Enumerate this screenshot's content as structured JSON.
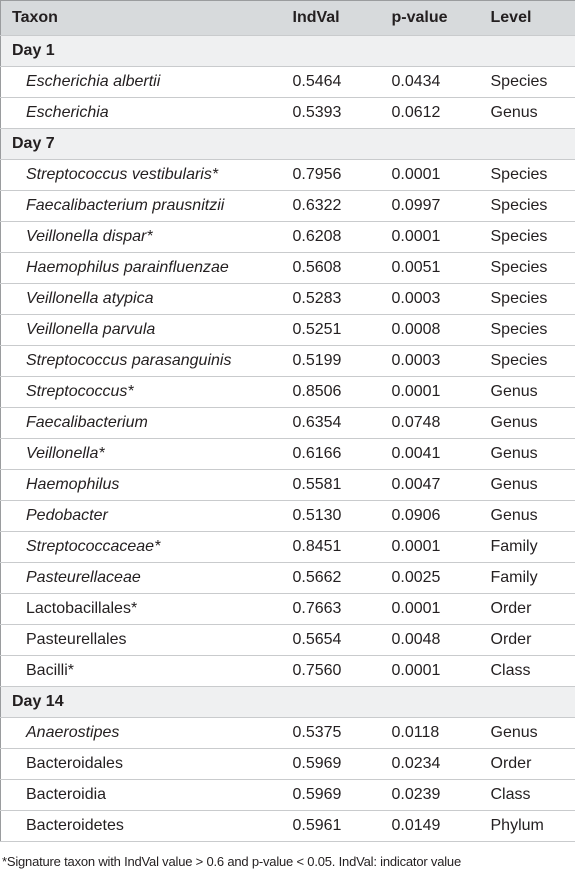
{
  "table": {
    "columns": [
      "Taxon",
      "IndVal",
      "p-value",
      "Level"
    ],
    "groups": [
      {
        "label": "Day 1",
        "rows": [
          {
            "taxon": "Escherichia albertii",
            "italic": true,
            "indval": "0.5464",
            "p_value": "0.0434",
            "level": "Species"
          },
          {
            "taxon": "Escherichia",
            "italic": true,
            "indval": "0.5393",
            "p_value": "0.0612",
            "level": "Genus"
          }
        ]
      },
      {
        "label": "Day 7",
        "rows": [
          {
            "taxon": "Streptococcus vestibularis*",
            "italic": true,
            "indval": "0.7956",
            "p_value": "0.0001",
            "level": "Species"
          },
          {
            "taxon": "Faecalibacterium prausnitzii",
            "italic": true,
            "indval": "0.6322",
            "p_value": "0.0997",
            "level": "Species"
          },
          {
            "taxon": "Veillonella dispar*",
            "italic": true,
            "indval": "0.6208",
            "p_value": "0.0001",
            "level": "Species"
          },
          {
            "taxon": "Haemophilus parainfluenzae",
            "italic": true,
            "indval": "0.5608",
            "p_value": "0.0051",
            "level": "Species"
          },
          {
            "taxon": "Veillonella atypica",
            "italic": true,
            "indval": "0.5283",
            "p_value": "0.0003",
            "level": "Species"
          },
          {
            "taxon": "Veillonella parvula",
            "italic": true,
            "indval": "0.5251",
            "p_value": "0.0008",
            "level": "Species"
          },
          {
            "taxon": "Streptococcus parasanguinis",
            "italic": true,
            "indval": "0.5199",
            "p_value": "0.0003",
            "level": "Species"
          },
          {
            "taxon": "Streptococcus*",
            "italic": true,
            "indval": "0.8506",
            "p_value": "0.0001",
            "level": "Genus"
          },
          {
            "taxon": "Faecalibacterium",
            "italic": true,
            "indval": "0.6354",
            "p_value": "0.0748",
            "level": "Genus"
          },
          {
            "taxon": "Veillonella*",
            "italic": true,
            "indval": "0.6166",
            "p_value": "0.0041",
            "level": "Genus"
          },
          {
            "taxon": "Haemophilus",
            "italic": true,
            "indval": "0.5581",
            "p_value": "0.0047",
            "level": "Genus"
          },
          {
            "taxon": "Pedobacter",
            "italic": true,
            "indval": "0.5130",
            "p_value": "0.0906",
            "level": "Genus"
          },
          {
            "taxon": "Streptococcaceae*",
            "italic": true,
            "indval": "0.8451",
            "p_value": "0.0001",
            "level": "Family"
          },
          {
            "taxon": "Pasteurellaceae",
            "italic": true,
            "indval": "0.5662",
            "p_value": "0.0025",
            "level": "Family"
          },
          {
            "taxon": "Lactobacillales*",
            "italic": false,
            "indval": "0.7663",
            "p_value": "0.0001",
            "level": "Order"
          },
          {
            "taxon": "Pasteurellales",
            "italic": false,
            "indval": "0.5654",
            "p_value": "0.0048",
            "level": "Order"
          },
          {
            "taxon": "Bacilli*",
            "italic": false,
            "indval": "0.7560",
            "p_value": "0.0001",
            "level": "Class"
          }
        ]
      },
      {
        "label": "Day 14",
        "rows": [
          {
            "taxon": "Anaerostipes",
            "italic": true,
            "indval": "0.5375",
            "p_value": "0.0118",
            "level": "Genus"
          },
          {
            "taxon": "Bacteroidales",
            "italic": false,
            "indval": "0.5969",
            "p_value": "0.0234",
            "level": "Order"
          },
          {
            "taxon": "Bacteroidia",
            "italic": false,
            "indval": "0.5969",
            "p_value": "0.0239",
            "level": "Class"
          },
          {
            "taxon": "Bacteroidetes",
            "italic": false,
            "indval": "0.5961",
            "p_value": "0.0149",
            "level": "Phylum"
          }
        ]
      }
    ]
  },
  "footnote": "*Signature taxon with IndVal value > 0.6 and p-value < 0.05. IndVal: indicator value"
}
